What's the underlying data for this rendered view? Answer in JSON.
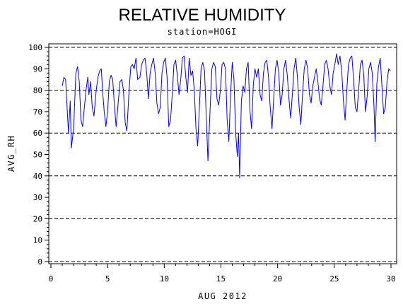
{
  "chart_data": {
    "type": "line",
    "title": "RELATIVE HUMIDITY",
    "subtitle": "station=HOGI",
    "xlabel": "AUG 2012",
    "ylabel": "AVG_RH",
    "xlim": [
      0,
      30
    ],
    "ylim": [
      0,
      100
    ],
    "x_ticks": [
      0,
      5,
      10,
      15,
      20,
      25,
      30
    ],
    "y_ticks": [
      0,
      10,
      20,
      30,
      40,
      50,
      60,
      70,
      80,
      90,
      100
    ],
    "grid_y_dashed": [
      0,
      20,
      40,
      60,
      80,
      100
    ],
    "series": [
      {
        "color": "#0000ff",
        "points": [
          [
            1.0,
            82
          ],
          [
            1.15,
            86
          ],
          [
            1.3,
            85
          ],
          [
            1.45,
            70
          ],
          [
            1.55,
            60
          ],
          [
            1.7,
            75
          ],
          [
            1.8,
            53
          ],
          [
            2.0,
            62
          ],
          [
            2.2,
            88
          ],
          [
            2.35,
            91
          ],
          [
            2.5,
            84
          ],
          [
            2.65,
            66
          ],
          [
            2.8,
            63
          ],
          [
            2.95,
            72
          ],
          [
            3.1,
            80
          ],
          [
            3.25,
            86
          ],
          [
            3.35,
            78
          ],
          [
            3.5,
            84
          ],
          [
            3.65,
            72
          ],
          [
            3.8,
            68
          ],
          [
            4.0,
            80
          ],
          [
            4.15,
            86
          ],
          [
            4.3,
            89
          ],
          [
            4.45,
            90
          ],
          [
            4.55,
            80
          ],
          [
            4.7,
            70
          ],
          [
            4.85,
            63
          ],
          [
            5.0,
            70
          ],
          [
            5.15,
            84
          ],
          [
            5.3,
            87
          ],
          [
            5.45,
            85
          ],
          [
            5.6,
            73
          ],
          [
            5.75,
            63
          ],
          [
            5.95,
            75
          ],
          [
            6.1,
            84
          ],
          [
            6.25,
            85
          ],
          [
            6.4,
            80
          ],
          [
            6.55,
            65
          ],
          [
            6.7,
            61
          ],
          [
            6.9,
            80
          ],
          [
            7.05,
            91
          ],
          [
            7.2,
            92
          ],
          [
            7.35,
            90
          ],
          [
            7.5,
            95
          ],
          [
            7.65,
            85
          ],
          [
            7.85,
            86
          ],
          [
            8.0,
            92
          ],
          [
            8.15,
            94
          ],
          [
            8.3,
            95
          ],
          [
            8.45,
            88
          ],
          [
            8.6,
            76
          ],
          [
            8.75,
            88
          ],
          [
            8.9,
            92
          ],
          [
            9.05,
            95
          ],
          [
            9.2,
            88
          ],
          [
            9.35,
            74
          ],
          [
            9.5,
            69
          ],
          [
            9.65,
            72
          ],
          [
            9.8,
            88
          ],
          [
            9.95,
            93
          ],
          [
            10.1,
            95
          ],
          [
            10.25,
            86
          ],
          [
            10.4,
            63
          ],
          [
            10.55,
            66
          ],
          [
            10.7,
            78
          ],
          [
            10.85,
            92
          ],
          [
            11.0,
            94
          ],
          [
            11.15,
            87
          ],
          [
            11.3,
            78
          ],
          [
            11.45,
            85
          ],
          [
            11.6,
            95
          ],
          [
            11.75,
            96
          ],
          [
            11.9,
            86
          ],
          [
            12.05,
            79
          ],
          [
            12.2,
            95
          ],
          [
            12.35,
            87
          ],
          [
            12.5,
            89
          ],
          [
            12.65,
            80
          ],
          [
            12.8,
            62
          ],
          [
            12.95,
            54
          ],
          [
            13.1,
            72
          ],
          [
            13.25,
            90
          ],
          [
            13.4,
            93
          ],
          [
            13.55,
            89
          ],
          [
            13.7,
            68
          ],
          [
            13.85,
            47
          ],
          [
            14.0,
            66
          ],
          [
            14.2,
            90
          ],
          [
            14.35,
            93
          ],
          [
            14.5,
            91
          ],
          [
            14.65,
            76
          ],
          [
            14.8,
            73
          ],
          [
            14.95,
            80
          ],
          [
            15.1,
            92
          ],
          [
            15.25,
            93
          ],
          [
            15.4,
            90
          ],
          [
            15.55,
            66
          ],
          [
            15.7,
            56
          ],
          [
            15.85,
            78
          ],
          [
            16.0,
            93
          ],
          [
            16.15,
            85
          ],
          [
            16.3,
            60
          ],
          [
            16.45,
            49
          ],
          [
            16.55,
            60
          ],
          [
            16.65,
            39
          ],
          [
            16.8,
            75
          ],
          [
            16.95,
            82
          ],
          [
            17.1,
            79
          ],
          [
            17.25,
            90
          ],
          [
            17.4,
            93
          ],
          [
            17.55,
            71
          ],
          [
            17.7,
            62
          ],
          [
            17.85,
            82
          ],
          [
            18.0,
            90
          ],
          [
            18.15,
            86
          ],
          [
            18.3,
            90
          ],
          [
            18.45,
            78
          ],
          [
            18.6,
            75
          ],
          [
            18.75,
            88
          ],
          [
            18.9,
            93
          ],
          [
            19.05,
            94
          ],
          [
            19.2,
            86
          ],
          [
            19.35,
            72
          ],
          [
            19.5,
            62
          ],
          [
            19.65,
            76
          ],
          [
            19.8,
            90
          ],
          [
            19.95,
            94
          ],
          [
            20.1,
            88
          ],
          [
            20.25,
            73
          ],
          [
            20.4,
            78
          ],
          [
            20.55,
            90
          ],
          [
            20.7,
            94
          ],
          [
            20.85,
            87
          ],
          [
            21.0,
            76
          ],
          [
            21.15,
            67
          ],
          [
            21.3,
            78
          ],
          [
            21.45,
            90
          ],
          [
            21.6,
            95
          ],
          [
            21.75,
            86
          ],
          [
            21.9,
            72
          ],
          [
            22.05,
            64
          ],
          [
            22.2,
            78
          ],
          [
            22.35,
            90
          ],
          [
            22.5,
            94
          ],
          [
            22.65,
            90
          ],
          [
            22.8,
            78
          ],
          [
            22.95,
            74
          ],
          [
            23.1,
            82
          ],
          [
            23.25,
            86
          ],
          [
            23.4,
            90
          ],
          [
            23.55,
            84
          ],
          [
            23.7,
            76
          ],
          [
            23.85,
            73
          ],
          [
            24.0,
            82
          ],
          [
            24.15,
            92
          ],
          [
            24.3,
            94
          ],
          [
            24.45,
            90
          ],
          [
            24.6,
            82
          ],
          [
            24.75,
            78
          ],
          [
            24.9,
            88
          ],
          [
            25.05,
            92
          ],
          [
            25.2,
            97
          ],
          [
            25.35,
            92
          ],
          [
            25.5,
            96
          ],
          [
            25.65,
            89
          ],
          [
            25.8,
            75
          ],
          [
            25.95,
            66
          ],
          [
            26.1,
            80
          ],
          [
            26.25,
            92
          ],
          [
            26.4,
            95
          ],
          [
            26.55,
            96
          ],
          [
            26.7,
            85
          ],
          [
            26.85,
            72
          ],
          [
            27.0,
            70
          ],
          [
            27.15,
            80
          ],
          [
            27.3,
            92
          ],
          [
            27.45,
            94
          ],
          [
            27.6,
            87
          ],
          [
            27.75,
            70
          ],
          [
            27.9,
            77
          ],
          [
            28.05,
            90
          ],
          [
            28.2,
            93
          ],
          [
            28.35,
            88
          ],
          [
            28.5,
            72
          ],
          [
            28.6,
            56
          ],
          [
            28.75,
            83
          ],
          [
            28.9,
            91
          ],
          [
            29.05,
            95
          ],
          [
            29.2,
            82
          ],
          [
            29.35,
            69
          ],
          [
            29.5,
            72
          ],
          [
            29.65,
            84
          ],
          [
            29.8,
            90
          ],
          [
            29.95,
            89
          ]
        ]
      }
    ]
  }
}
